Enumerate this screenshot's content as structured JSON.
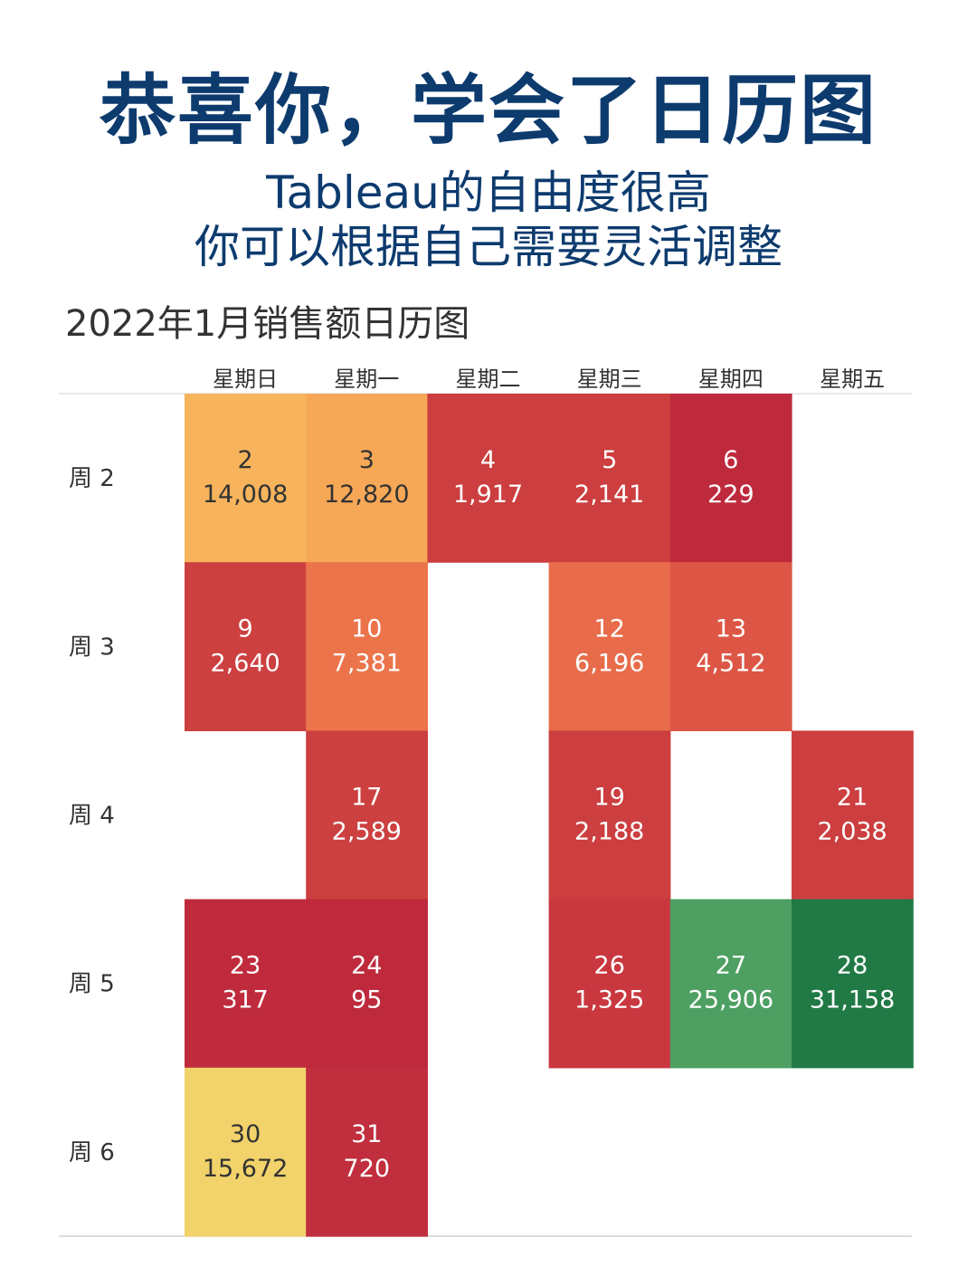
{
  "header": {
    "title": "恭喜你，学会了日历图",
    "subtitle_line1": "Tableau的自由度很高",
    "subtitle_line2": "你可以根据自己需要灵活调整"
  },
  "chart_data": {
    "type": "heatmap",
    "title": "2022年1月销售额日历图",
    "columns": [
      "星期日",
      "星期一",
      "星期二",
      "星期三",
      "星期四",
      "星期五"
    ],
    "rows": [
      "周 2",
      "周 3",
      "周 4",
      "周 5",
      "周 6"
    ],
    "cells": [
      {
        "row": 0,
        "col": 0,
        "day": "2",
        "value": "14,008",
        "color": "#f8b45c",
        "text_color": "#333333"
      },
      {
        "row": 0,
        "col": 1,
        "day": "3",
        "value": "12,820",
        "color": "#f7a856",
        "text_color": "#333333"
      },
      {
        "row": 0,
        "col": 2,
        "day": "4",
        "value": "1,917",
        "color": "#cc3e3f",
        "text_color": "#ffffff"
      },
      {
        "row": 0,
        "col": 3,
        "day": "5",
        "value": "2,141",
        "color": "#cc3e3f",
        "text_color": "#ffffff"
      },
      {
        "row": 0,
        "col": 4,
        "day": "6",
        "value": "229",
        "color": "#be2a3c",
        "text_color": "#ffffff"
      },
      {
        "row": 1,
        "col": 0,
        "day": "9",
        "value": "2,640",
        "color": "#cd4040",
        "text_color": "#ffffff"
      },
      {
        "row": 1,
        "col": 1,
        "day": "10",
        "value": "7,381",
        "color": "#ec744b",
        "text_color": "#ffffff"
      },
      {
        "row": 1,
        "col": 3,
        "day": "12",
        "value": "6,196",
        "color": "#e86c4b",
        "text_color": "#ffffff"
      },
      {
        "row": 1,
        "col": 4,
        "day": "13",
        "value": "4,512",
        "color": "#dd5645",
        "text_color": "#ffffff"
      },
      {
        "row": 2,
        "col": 1,
        "day": "17",
        "value": "2,589",
        "color": "#cd4040",
        "text_color": "#ffffff"
      },
      {
        "row": 2,
        "col": 3,
        "day": "19",
        "value": "2,188",
        "color": "#cc3e3f",
        "text_color": "#ffffff"
      },
      {
        "row": 2,
        "col": 5,
        "day": "21",
        "value": "2,038",
        "color": "#cc3e3f",
        "text_color": "#ffffff"
      },
      {
        "row": 3,
        "col": 0,
        "day": "23",
        "value": "317",
        "color": "#bf2b3c",
        "text_color": "#ffffff"
      },
      {
        "row": 3,
        "col": 1,
        "day": "24",
        "value": "95",
        "color": "#be2a3c",
        "text_color": "#ffffff"
      },
      {
        "row": 3,
        "col": 3,
        "day": "26",
        "value": "1,325",
        "color": "#c9383e",
        "text_color": "#ffffff"
      },
      {
        "row": 3,
        "col": 4,
        "day": "27",
        "value": "25,906",
        "color": "#4e9f62",
        "text_color": "#ffffff"
      },
      {
        "row": 3,
        "col": 5,
        "day": "28",
        "value": "31,158",
        "color": "#217a45",
        "text_color": "#ffffff"
      },
      {
        "row": 4,
        "col": 0,
        "day": "30",
        "value": "15,672",
        "color": "#f2d36b",
        "text_color": "#333333"
      },
      {
        "row": 4,
        "col": 1,
        "day": "31",
        "value": "720",
        "color": "#c12e3d",
        "text_color": "#ffffff"
      }
    ]
  }
}
